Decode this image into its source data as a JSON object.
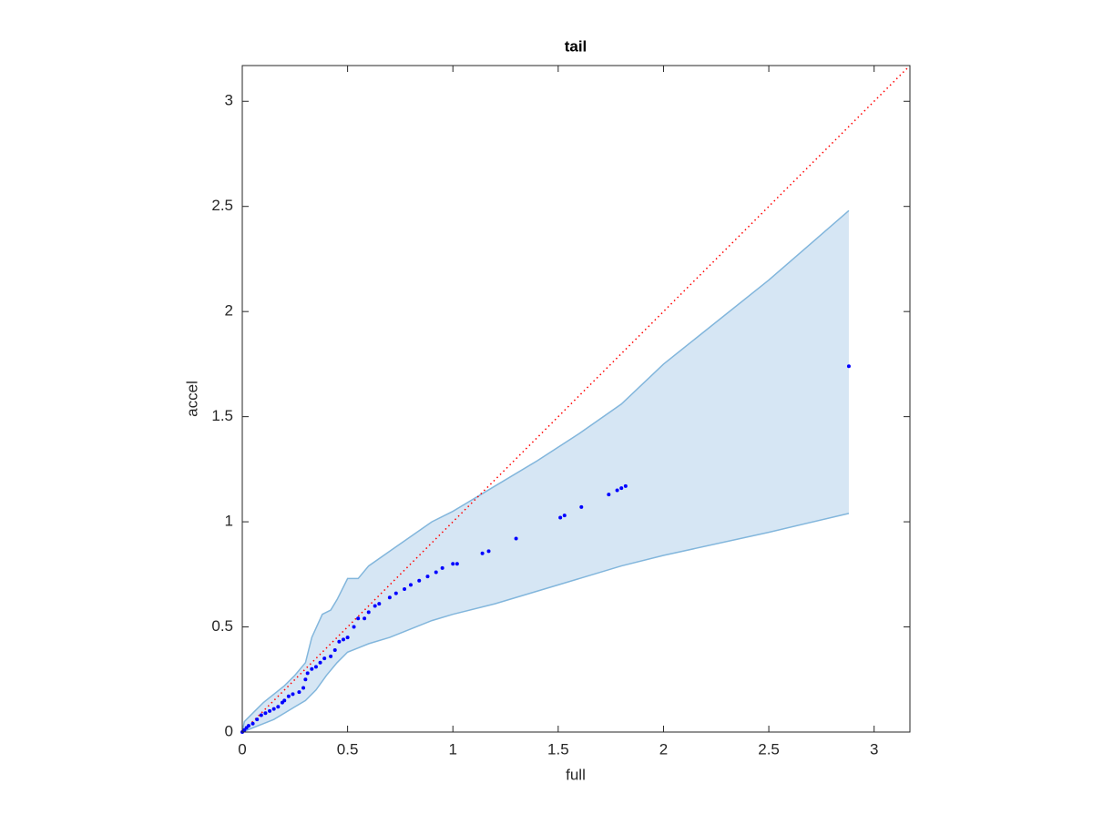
{
  "chart_data": {
    "type": "scatter",
    "title": "tail",
    "x_label": "full",
    "y_label": "accel",
    "x": [
      0,
      0.01,
      0.02,
      0.03,
      0.05,
      0.07,
      0.09,
      0.11,
      0.13,
      0.15,
      0.17,
      0.19,
      0.2,
      0.22,
      0.24,
      0.27,
      0.29,
      0.3,
      0.31,
      0.33,
      0.35,
      0.37,
      0.39,
      0.42,
      0.44,
      0.46,
      0.48,
      0.5,
      0.53,
      0.55,
      0.58,
      0.6,
      0.63,
      0.65,
      0.7,
      0.73,
      0.77,
      0.8,
      0.84,
      0.88,
      0.92,
      0.95,
      1.0,
      1.02,
      1.14,
      1.17,
      1.3,
      1.51,
      1.53,
      1.61,
      1.74,
      1.78,
      1.8,
      1.82,
      2.88
    ],
    "y": [
      0,
      0.01,
      0.02,
      0.03,
      0.04,
      0.06,
      0.08,
      0.09,
      0.1,
      0.11,
      0.12,
      0.14,
      0.15,
      0.17,
      0.18,
      0.19,
      0.21,
      0.25,
      0.28,
      0.3,
      0.31,
      0.33,
      0.35,
      0.36,
      0.39,
      0.43,
      0.44,
      0.45,
      0.5,
      0.54,
      0.54,
      0.57,
      0.6,
      0.61,
      0.64,
      0.66,
      0.68,
      0.7,
      0.72,
      0.74,
      0.76,
      0.78,
      0.8,
      0.8,
      0.85,
      0.86,
      0.92,
      1.02,
      1.03,
      1.07,
      1.13,
      1.15,
      1.16,
      1.17,
      1.74
    ],
    "color": "#0000ff",
    "band_upper": {
      "x": [
        0,
        0.01,
        0.05,
        0.1,
        0.15,
        0.2,
        0.25,
        0.3,
        0.33,
        0.38,
        0.42,
        0.45,
        0.5,
        0.55,
        0.6,
        0.7,
        0.8,
        0.9,
        1.0,
        1.2,
        1.4,
        1.6,
        1.8,
        2.0,
        2.5,
        2.88
      ],
      "y": [
        0,
        0.05,
        0.09,
        0.14,
        0.18,
        0.22,
        0.27,
        0.33,
        0.45,
        0.56,
        0.58,
        0.63,
        0.73,
        0.73,
        0.79,
        0.86,
        0.93,
        1.0,
        1.05,
        1.17,
        1.29,
        1.42,
        1.56,
        1.75,
        2.15,
        2.48
      ]
    },
    "band_lower": {
      "x": [
        0,
        0.05,
        0.1,
        0.15,
        0.2,
        0.25,
        0.3,
        0.35,
        0.4,
        0.45,
        0.5,
        0.55,
        0.6,
        0.7,
        0.8,
        0.9,
        1.0,
        1.2,
        1.5,
        1.8,
        2.0,
        2.5,
        2.88
      ],
      "y": [
        0,
        0.02,
        0.04,
        0.06,
        0.09,
        0.12,
        0.15,
        0.2,
        0.27,
        0.33,
        0.38,
        0.4,
        0.42,
        0.45,
        0.49,
        0.53,
        0.56,
        0.61,
        0.7,
        0.79,
        0.84,
        0.95,
        1.04
      ]
    },
    "band_fill": "#d6e6f4",
    "band_edge": "#82b6dc",
    "reference_color": "#ff0000",
    "xlim": [
      0,
      3.17
    ],
    "ylim": [
      0,
      3.17
    ],
    "xticks": [
      0,
      0.5,
      1,
      1.5,
      2,
      2.5,
      3
    ],
    "yticks": [
      0,
      0.5,
      1,
      1.5,
      2,
      2.5,
      3
    ]
  }
}
